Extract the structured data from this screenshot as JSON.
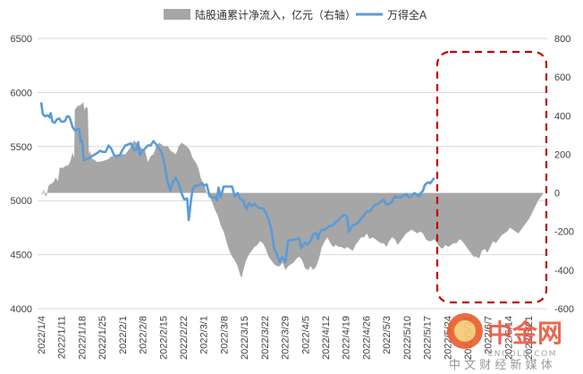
{
  "chart_data": {
    "type": "area",
    "series": [
      {
        "name": "陆股通累计净流入，亿元（右轴）",
        "axis": "right",
        "kind": "area",
        "color": "#a6a6a6"
      },
      {
        "name": "万得全A",
        "axis": "left",
        "kind": "line",
        "color": "#5b9bd5"
      }
    ],
    "x_categories": [
      "2022/1/4",
      "2022/1/11",
      "2022/1/18",
      "2022/1/25",
      "2022/2/1",
      "2022/2/8",
      "2022/2/15",
      "2022/2/22",
      "2022/3/1",
      "2022/3/8",
      "2022/3/15",
      "2022/3/22",
      "2022/3/29",
      "2022/4/5",
      "2022/4/12",
      "2022/4/19",
      "2022/4/26",
      "2022/5/3",
      "2022/5/10",
      "2022/5/17",
      "2022/5/24",
      "2022/5/31",
      "2022/6/7",
      "2022/6/14",
      "2022/6/21"
    ],
    "x_tick_labels": [
      "2022/1/4",
      "2022/1/11",
      "2022/1/18",
      "2022/1/25",
      "2022/2/1",
      "2022/2/8",
      "2022/2/15",
      "2022/2/22",
      "2022/3/1",
      "2022/3/8",
      "2022/3/15",
      "2022/3/22",
      "2022/3/29",
      "2022/4/5",
      "2022/4/12",
      "2022/4/19",
      "2022/4/26",
      "2022/5/3",
      "2022/5/10",
      "2022/5/17",
      "2022/5/24",
      "2022/5/31",
      "2022/6/7",
      "2022/6/14",
      "2022/6/21"
    ],
    "y_left": {
      "min": 4000,
      "max": 6500,
      "step": 500,
      "ticks": [
        "4000",
        "4500",
        "5000",
        "5500",
        "6000",
        "6500"
      ]
    },
    "y_right": {
      "min": -600,
      "max": 800,
      "step": 200,
      "ticks": [
        "-600",
        "-400",
        "-200",
        "0",
        "200",
        "400",
        "600",
        "800"
      ]
    },
    "wind_a_values": [
      [
        0,
        5910
      ],
      [
        0.3,
        5800
      ],
      [
        0.7,
        5780
      ],
      [
        1.2,
        5790
      ],
      [
        1.5,
        5770
      ],
      [
        1.7,
        5810
      ],
      [
        2,
        5730
      ],
      [
        2.4,
        5720
      ],
      [
        2.8,
        5750
      ],
      [
        3.2,
        5760
      ],
      [
        3.6,
        5730
      ],
      [
        4,
        5730
      ],
      [
        4.3,
        5740
      ],
      [
        4.6,
        5780
      ],
      [
        4.9,
        5780
      ],
      [
        5.2,
        5750
      ],
      [
        5.6,
        5680
      ],
      [
        6,
        5650
      ],
      [
        6.5,
        5660
      ],
      [
        6.8,
        5660
      ],
      [
        7,
        5550
      ],
      [
        7.3,
        5560
      ],
      [
        7.6,
        5370
      ],
      [
        8,
        5380
      ],
      [
        9,
        5410
      ],
      [
        10,
        5440
      ],
      [
        10.5,
        5460
      ],
      [
        11,
        5450
      ],
      [
        11.5,
        5450
      ],
      [
        12,
        5510
      ],
      [
        12.5,
        5480
      ],
      [
        13,
        5420
      ],
      [
        13.5,
        5410
      ],
      [
        14,
        5420
      ],
      [
        14.5,
        5470
      ],
      [
        15,
        5510
      ],
      [
        15.5,
        5520
      ],
      [
        16,
        5530
      ],
      [
        16.5,
        5470
      ],
      [
        17,
        5470
      ],
      [
        17.3,
        5540
      ],
      [
        17.6,
        5420
      ],
      [
        18,
        5460
      ],
      [
        18.5,
        5480
      ],
      [
        19,
        5510
      ],
      [
        19.5,
        5510
      ],
      [
        20,
        5550
      ],
      [
        20.5,
        5520
      ],
      [
        21,
        5480
      ],
      [
        21.5,
        5440
      ],
      [
        22,
        5330
      ],
      [
        22.5,
        5180
      ],
      [
        23,
        5090
      ],
      [
        23.5,
        5180
      ],
      [
        24,
        5210
      ],
      [
        24.5,
        5160
      ],
      [
        25,
        5070
      ],
      [
        25.5,
        5010
      ],
      [
        26,
        5020
      ],
      [
        26.3,
        4820
      ],
      [
        26.7,
        5010
      ],
      [
        27,
        5110
      ],
      [
        27.5,
        5140
      ],
      [
        28,
        5140
      ],
      [
        28.5,
        5160
      ],
      [
        29,
        5140
      ],
      [
        29.5,
        5150
      ],
      [
        30,
        5040
      ],
      [
        30.5,
        5030
      ],
      [
        31,
        5030
      ],
      [
        31.3,
        5000
      ],
      [
        31.6,
        5120
      ],
      [
        32,
        5030
      ],
      [
        32.5,
        5130
      ],
      [
        33,
        5130
      ],
      [
        33.5,
        5130
      ],
      [
        34,
        5130
      ],
      [
        34.5,
        5040
      ],
      [
        35,
        5070
      ],
      [
        35.5,
        5010
      ],
      [
        36,
        5000
      ],
      [
        36.3,
        4950
      ],
      [
        36.6,
        4920
      ],
      [
        37,
        4980
      ],
      [
        37.5,
        4950
      ],
      [
        38,
        4970
      ],
      [
        38.5,
        4940
      ],
      [
        39,
        4930
      ],
      [
        39.5,
        4930
      ],
      [
        40,
        4890
      ],
      [
        40.5,
        4830
      ],
      [
        41,
        4730
      ],
      [
        41.5,
        4560
      ],
      [
        42,
        4500
      ],
      [
        42.5,
        4430
      ],
      [
        42.8,
        4470
      ],
      [
        43,
        4480
      ],
      [
        43.5,
        4430
      ],
      [
        44,
        4630
      ],
      [
        45,
        4640
      ],
      [
        46,
        4650
      ],
      [
        46.3,
        4560
      ],
      [
        46.6,
        4580
      ],
      [
        47,
        4610
      ],
      [
        47.5,
        4590
      ],
      [
        48,
        4630
      ],
      [
        48.5,
        4690
      ],
      [
        49,
        4700
      ],
      [
        49.3,
        4640
      ],
      [
        49.6,
        4700
      ],
      [
        50,
        4730
      ],
      [
        50.5,
        4730
      ],
      [
        51,
        4750
      ],
      [
        51.5,
        4770
      ],
      [
        52,
        4770
      ],
      [
        52.3,
        4790
      ],
      [
        52.6,
        4810
      ],
      [
        53,
        4820
      ],
      [
        53.5,
        4850
      ],
      [
        54,
        4870
      ],
      [
        54.5,
        4850
      ],
      [
        54.8,
        4710
      ],
      [
        55.1,
        4740
      ],
      [
        55.5,
        4770
      ],
      [
        56,
        4780
      ],
      [
        56.5,
        4800
      ],
      [
        57,
        4830
      ],
      [
        57.3,
        4850
      ],
      [
        57.6,
        4870
      ],
      [
        58,
        4900
      ],
      [
        58.5,
        4900
      ],
      [
        59,
        4930
      ],
      [
        59.5,
        4960
      ],
      [
        60,
        4970
      ],
      [
        60.5,
        4990
      ],
      [
        61,
        5010
      ],
      [
        61.5,
        4960
      ],
      [
        62,
        4970
      ],
      [
        62.5,
        4990
      ],
      [
        63,
        5040
      ],
      [
        63.5,
        5030
      ],
      [
        64,
        5030
      ],
      [
        64.5,
        5050
      ],
      [
        65,
        5060
      ],
      [
        65.5,
        5030
      ],
      [
        66,
        5040
      ],
      [
        66.5,
        5070
      ],
      [
        67,
        5050
      ],
      [
        67.3,
        5040
      ],
      [
        67.6,
        5070
      ],
      [
        68,
        5090
      ],
      [
        68.3,
        5140
      ],
      [
        68.6,
        5160
      ],
      [
        69,
        5170
      ],
      [
        69.3,
        5160
      ],
      [
        69.6,
        5180
      ],
      [
        70,
        5210
      ]
    ],
    "northbound_values": [
      [
        0,
        5
      ],
      [
        0.2,
        -10
      ],
      [
        0.5,
        18
      ],
      [
        0.8,
        -20
      ],
      [
        1,
        -10
      ],
      [
        1.3,
        35
      ],
      [
        1.6,
        45
      ],
      [
        2,
        50
      ],
      [
        2.3,
        60
      ],
      [
        2.6,
        80
      ],
      [
        3,
        60
      ],
      [
        3.3,
        130
      ],
      [
        3.6,
        130
      ],
      [
        4,
        130
      ],
      [
        4.3,
        140
      ],
      [
        4.6,
        140
      ],
      [
        5,
        150
      ],
      [
        5.3,
        175
      ],
      [
        5.6,
        210
      ],
      [
        5.9,
        180
      ],
      [
        6,
        430
      ],
      [
        6.5,
        450
      ],
      [
        7,
        455
      ],
      [
        7.5,
        470
      ],
      [
        7.7,
        430
      ],
      [
        8,
        445
      ],
      [
        8.3,
        440
      ],
      [
        8.5,
        200
      ],
      [
        8.7,
        220
      ],
      [
        9,
        180
      ],
      [
        9.5,
        170
      ],
      [
        10,
        160
      ],
      [
        11,
        165
      ],
      [
        12,
        175
      ],
      [
        12.5,
        190
      ],
      [
        13,
        190
      ],
      [
        13.5,
        200
      ],
      [
        14,
        200
      ],
      [
        14.5,
        200
      ],
      [
        15,
        200
      ],
      [
        16,
        240
      ],
      [
        16.5,
        270
      ],
      [
        17,
        260
      ],
      [
        17.5,
        240
      ],
      [
        18,
        230
      ],
      [
        18.5,
        220
      ],
      [
        19,
        160
      ],
      [
        19.5,
        190
      ],
      [
        20,
        200
      ],
      [
        20.5,
        240
      ],
      [
        21,
        260
      ],
      [
        21.5,
        250
      ],
      [
        22,
        240
      ],
      [
        22.5,
        245
      ],
      [
        23,
        220
      ],
      [
        23.5,
        210
      ],
      [
        24,
        200
      ],
      [
        24.5,
        240
      ],
      [
        25,
        260
      ],
      [
        25.5,
        250
      ],
      [
        26,
        240
      ],
      [
        26.5,
        220
      ],
      [
        27,
        180
      ],
      [
        27.5,
        160
      ],
      [
        28,
        130
      ],
      [
        28.5,
        70
      ],
      [
        29,
        50
      ],
      [
        29.5,
        0
      ],
      [
        30,
        -20
      ],
      [
        30.5,
        -50
      ],
      [
        31,
        -90
      ],
      [
        31.5,
        -120
      ],
      [
        32,
        -170
      ],
      [
        32.5,
        -200
      ],
      [
        33,
        -250
      ],
      [
        33.5,
        -300
      ],
      [
        34,
        -330
      ],
      [
        34.5,
        -350
      ],
      [
        35,
        -380
      ],
      [
        35.5,
        -430
      ],
      [
        35.7,
        -440
      ],
      [
        36,
        -400
      ],
      [
        36.5,
        -350
      ],
      [
        37,
        -320
      ],
      [
        37.5,
        -300
      ],
      [
        38,
        -280
      ],
      [
        38.5,
        -270
      ],
      [
        39,
        -250
      ],
      [
        39.5,
        -260
      ],
      [
        40,
        -290
      ],
      [
        40.5,
        -330
      ],
      [
        41,
        -350
      ],
      [
        41.5,
        -370
      ],
      [
        42,
        -380
      ],
      [
        42.5,
        -380
      ],
      [
        43,
        -360
      ],
      [
        43.5,
        -400
      ],
      [
        44,
        -380
      ],
      [
        44.5,
        -370
      ],
      [
        45,
        -360
      ],
      [
        45.5,
        -340
      ],
      [
        46,
        -330
      ],
      [
        46.5,
        -350
      ],
      [
        47,
        -390
      ],
      [
        47.5,
        -400
      ],
      [
        48,
        -380
      ],
      [
        48.5,
        -400
      ],
      [
        49,
        -380
      ],
      [
        49.5,
        -340
      ],
      [
        50,
        -280
      ],
      [
        50.5,
        -250
      ],
      [
        51,
        -230
      ],
      [
        51.5,
        -260
      ],
      [
        52,
        -280
      ],
      [
        52.5,
        -270
      ],
      [
        53,
        -280
      ],
      [
        53.5,
        -280
      ],
      [
        54,
        -290
      ],
      [
        54.5,
        -280
      ],
      [
        55,
        -290
      ],
      [
        55.5,
        -300
      ],
      [
        56,
        -270
      ],
      [
        56.5,
        -250
      ],
      [
        57,
        -230
      ],
      [
        57.5,
        -230
      ],
      [
        58,
        -210
      ],
      [
        58.5,
        -240
      ],
      [
        59,
        -230
      ],
      [
        59.5,
        -240
      ],
      [
        60,
        -250
      ],
      [
        60.5,
        -260
      ],
      [
        61,
        -260
      ],
      [
        61.5,
        -280
      ],
      [
        62,
        -250
      ],
      [
        62.5,
        -230
      ],
      [
        63,
        -240
      ],
      [
        63.5,
        -270
      ],
      [
        64,
        -250
      ],
      [
        64.5,
        -230
      ],
      [
        65,
        -210
      ],
      [
        65.5,
        -200
      ],
      [
        66,
        -190
      ],
      [
        66.5,
        -200
      ],
      [
        67,
        -210
      ],
      [
        67.5,
        -200
      ],
      [
        68,
        -210
      ],
      [
        68.5,
        -240
      ],
      [
        69,
        -250
      ],
      [
        69.5,
        -250
      ],
      [
        70,
        -240
      ],
      [
        70.5,
        -260
      ],
      [
        71,
        -280
      ],
      [
        71.5,
        -290
      ],
      [
        72,
        -270
      ],
      [
        72.5,
        -280
      ],
      [
        73,
        -270
      ],
      [
        73.5,
        -260
      ],
      [
        74,
        -260
      ],
      [
        74.5,
        -240
      ],
      [
        75,
        -250
      ],
      [
        75.5,
        -270
      ],
      [
        76,
        -290
      ],
      [
        76.5,
        -310
      ],
      [
        77,
        -330
      ],
      [
        77.5,
        -330
      ],
      [
        78,
        -340
      ],
      [
        78.5,
        -300
      ],
      [
        79,
        -290
      ],
      [
        79.5,
        -310
      ],
      [
        80,
        -280
      ],
      [
        80.5,
        -250
      ],
      [
        81,
        -260
      ],
      [
        81.5,
        -240
      ],
      [
        82,
        -220
      ],
      [
        82.5,
        -210
      ],
      [
        83,
        -200
      ],
      [
        83.5,
        -180
      ],
      [
        84,
        -190
      ],
      [
        84.5,
        -200
      ],
      [
        85,
        -210
      ],
      [
        85.5,
        -190
      ],
      [
        86,
        -170
      ],
      [
        86.5,
        -150
      ],
      [
        87,
        -130
      ],
      [
        87.5,
        -100
      ],
      [
        88,
        -70
      ],
      [
        88.5,
        -40
      ],
      [
        89,
        -20
      ],
      [
        89.5,
        0
      ]
    ],
    "annotation": "dashed red rounded rectangle highlighting recent period"
  },
  "legend": {
    "area_label": "陆股通累计净流入，亿元（右轴）",
    "line_label": "万得全A"
  },
  "watermark": {
    "brand": "中金网",
    "domain": "CNGOLD.COM",
    "tagline": "中 文 财 经 新 媒 体"
  },
  "colors": {
    "area": "#a6a6a6",
    "line": "#5b9bd5",
    "highlight": "#c00000",
    "grid": "#d9d9d9"
  }
}
